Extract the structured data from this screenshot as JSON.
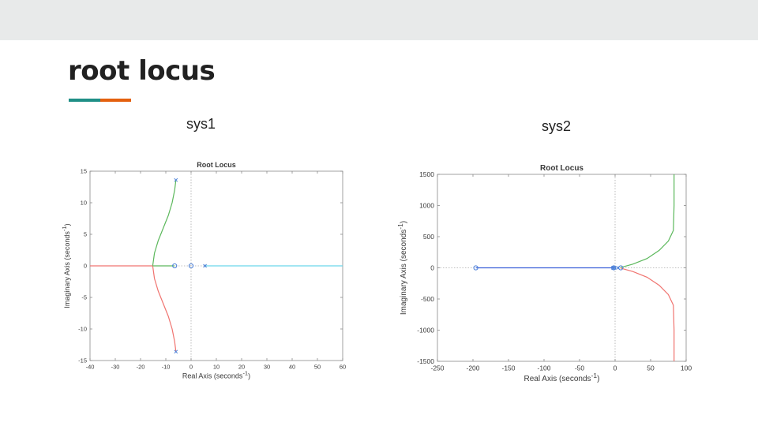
{
  "slide": {
    "title": "root locus",
    "accent_colors": [
      "#1f8f86",
      "#e4600e"
    ]
  },
  "chart_data": [
    {
      "type": "line",
      "caption": "sys1",
      "title": "Root Locus",
      "xlabel": "Real Axis (seconds",
      "ylabel": "Imaginary Axis (seconds",
      "label_superscript": "-1",
      "label_close": ")",
      "xlim": [
        -40,
        60
      ],
      "ylim": [
        -15,
        15
      ],
      "xticks": [
        -40,
        -30,
        -20,
        -10,
        0,
        10,
        20,
        30,
        40,
        50,
        60
      ],
      "yticks": [
        -15,
        -10,
        -5,
        0,
        5,
        10,
        15
      ],
      "grid": false,
      "series": [
        {
          "color": "#5cb85c",
          "x": [
            -6,
            -6.5,
            -7.5,
            -9,
            -11,
            -13,
            -14.5,
            -15.2
          ],
          "y": [
            13.6,
            12,
            10,
            8,
            6,
            4,
            2,
            0
          ]
        },
        {
          "color": "#f07470",
          "x": [
            -6,
            -6.5,
            -7.5,
            -9,
            -11,
            -13,
            -14.5,
            -15.2
          ],
          "y": [
            -13.6,
            -12,
            -10,
            -8,
            -6,
            -4,
            -2,
            0
          ]
        },
        {
          "color": "#f07470",
          "x": [
            -40,
            -15.2
          ],
          "y": [
            0,
            0
          ]
        },
        {
          "color": "#5cb85c",
          "x": [
            -15.2,
            -6.5
          ],
          "y": [
            0,
            0
          ]
        },
        {
          "color": "#6ad6ea",
          "x": [
            5.5,
            60
          ],
          "y": [
            0,
            0
          ]
        }
      ],
      "poles": [
        [
          -6,
          13.6
        ],
        [
          -6,
          -13.6
        ],
        [
          5.5,
          0
        ]
      ],
      "zeros": [
        [
          -6.5,
          0
        ],
        [
          0,
          0
        ]
      ]
    },
    {
      "type": "line",
      "caption": "sys2",
      "title": "Root Locus",
      "xlabel": "Real Axis (seconds",
      "ylabel": "Imaginary Axis (seconds",
      "label_superscript": "-1",
      "label_close": ")",
      "xlim": [
        -250,
        100
      ],
      "ylim": [
        -1500,
        1500
      ],
      "xticks": [
        -250,
        -200,
        -150,
        -100,
        -50,
        0,
        50,
        100
      ],
      "yticks": [
        -1500,
        -1000,
        -500,
        0,
        500,
        1000,
        1500
      ],
      "grid": false,
      "series": [
        {
          "color": "#3a5fd9",
          "x": [
            -196,
            -3
          ],
          "y": [
            0,
            0
          ]
        },
        {
          "color": "#5cb85c",
          "x": [
            8,
            25,
            45,
            62,
            75,
            82,
            83,
            83
          ],
          "y": [
            5,
            60,
            150,
            280,
            430,
            600,
            1000,
            1500
          ]
        },
        {
          "color": "#f07470",
          "x": [
            8,
            25,
            45,
            62,
            75,
            82,
            83,
            83
          ],
          "y": [
            -5,
            -60,
            -150,
            -280,
            -430,
            -600,
            -1000,
            -1500
          ]
        }
      ],
      "poles": [
        [
          -3,
          0
        ],
        [
          -1,
          0
        ],
        [
          4,
          0
        ]
      ],
      "zeros": [
        [
          -196,
          0
        ],
        [
          -2,
          0
        ],
        [
          8,
          0
        ]
      ]
    }
  ]
}
